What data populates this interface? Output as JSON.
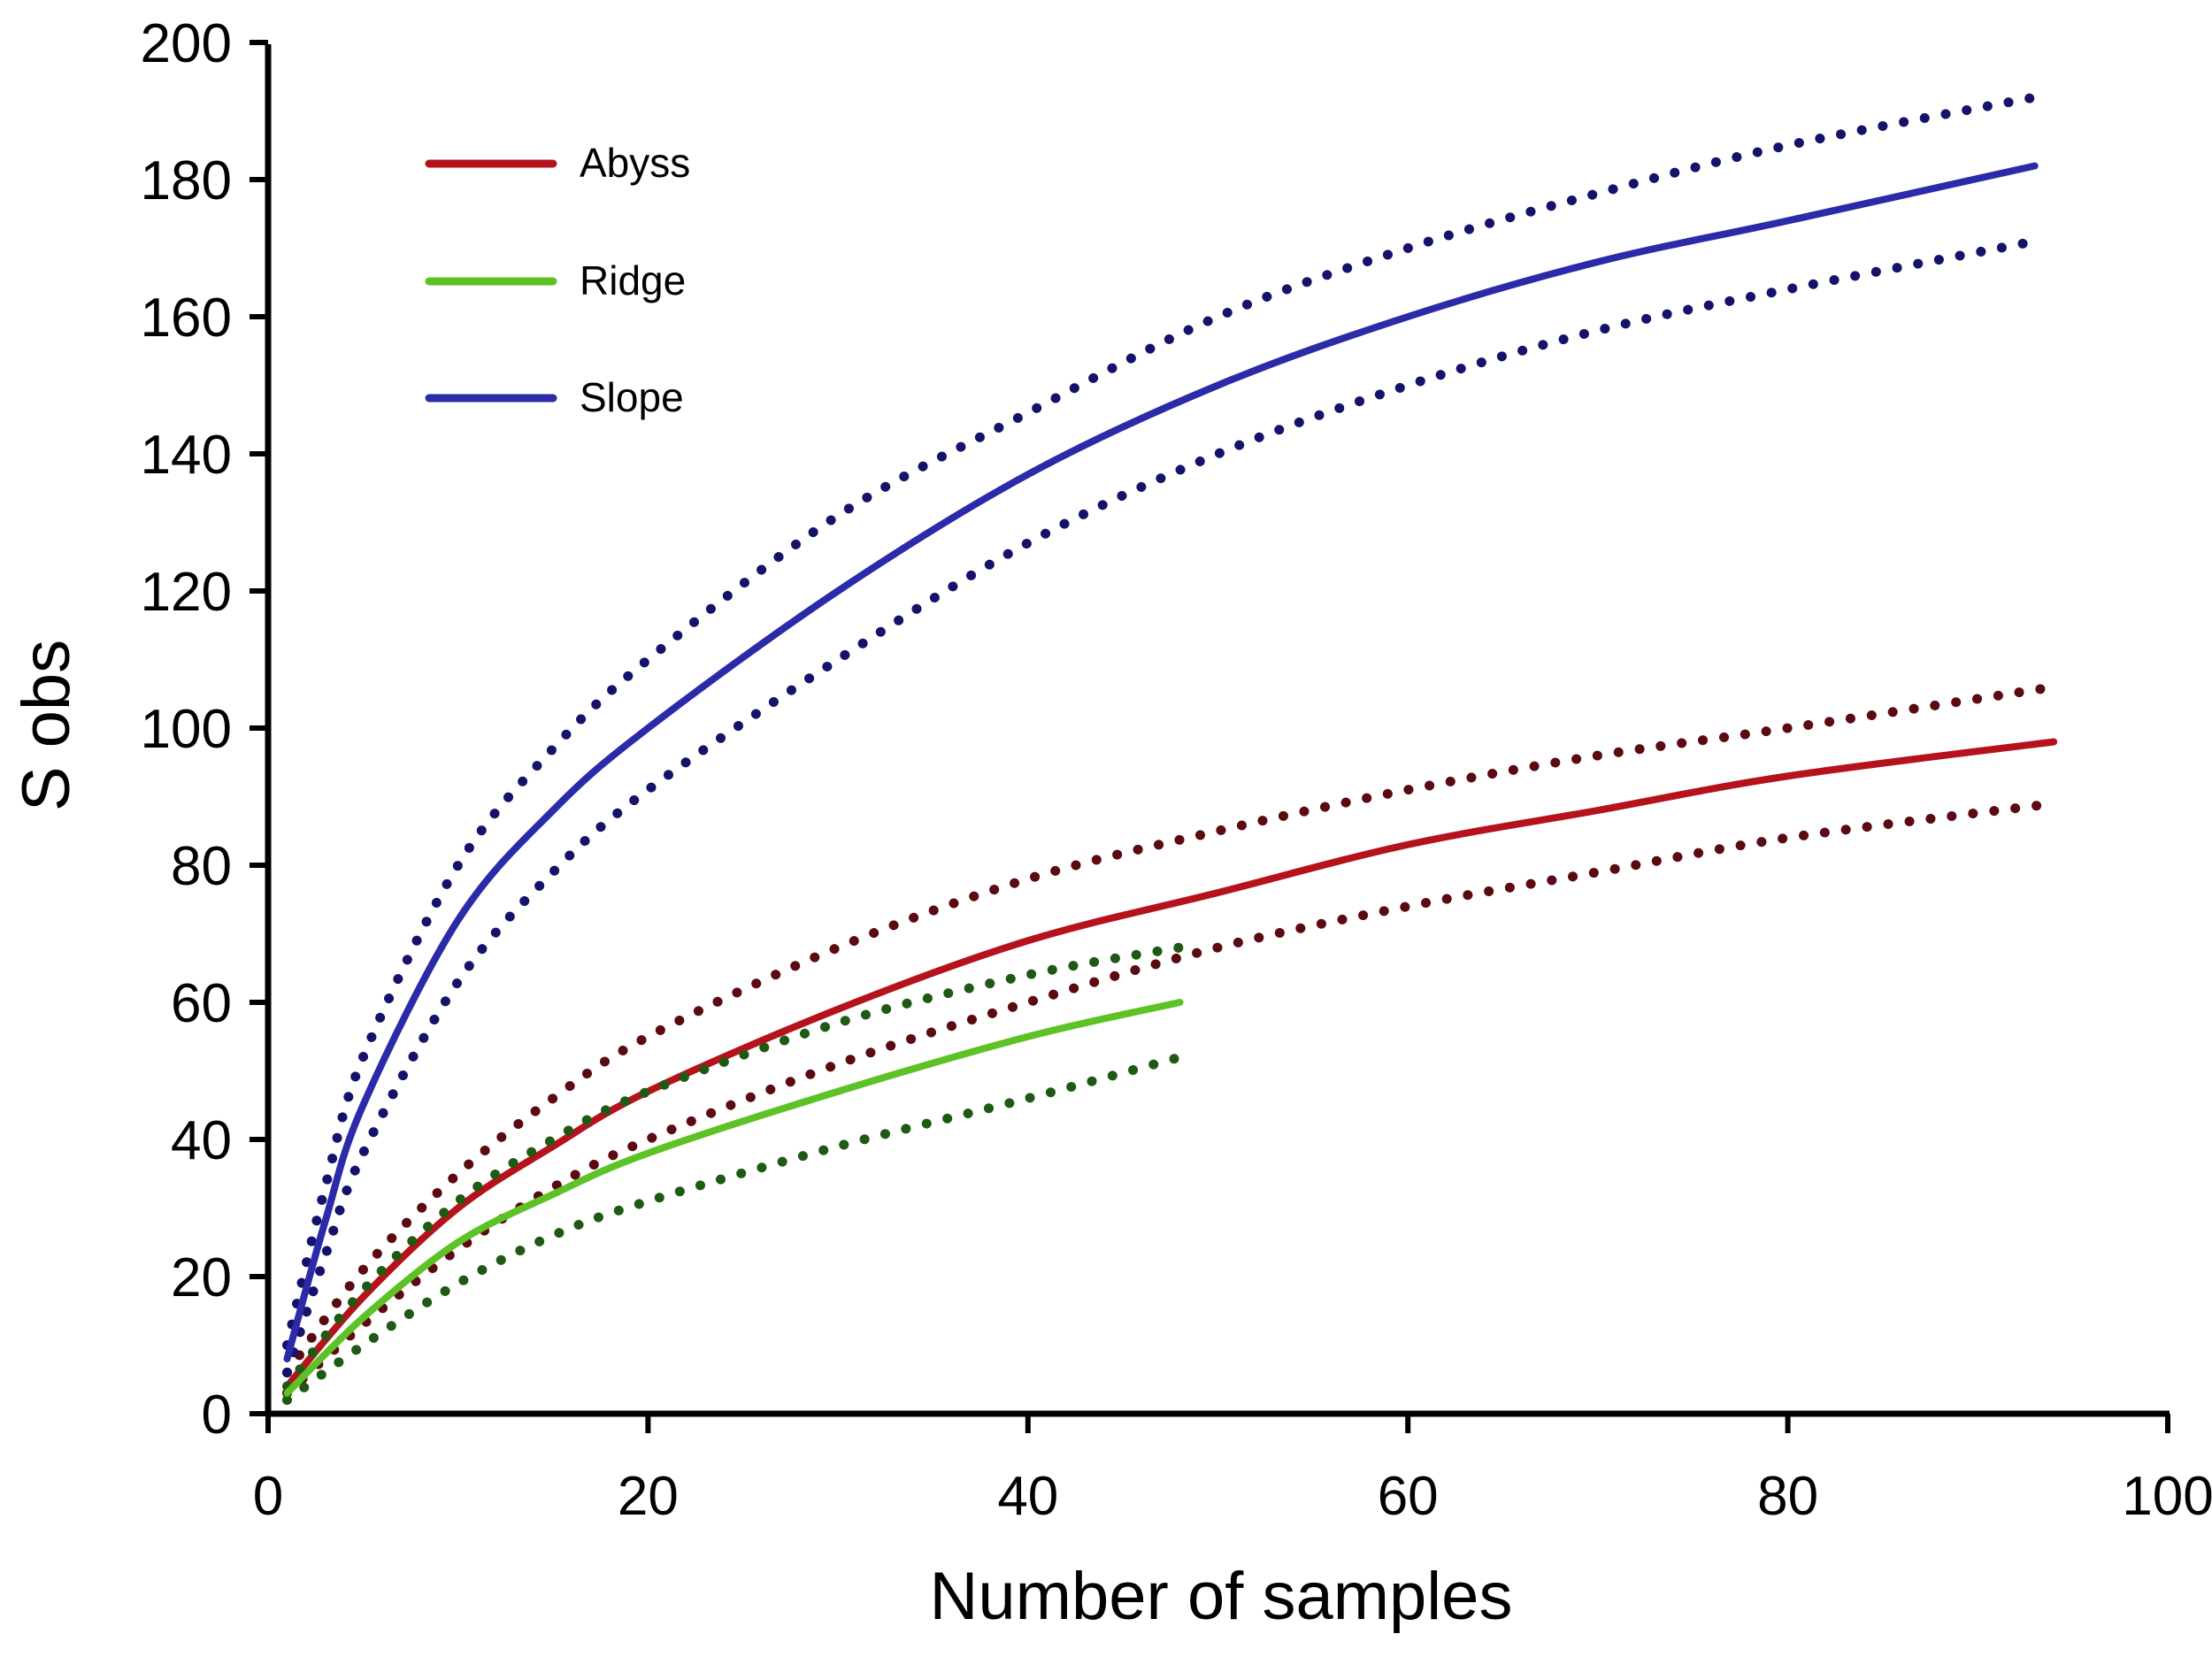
{
  "chart_data": {
    "type": "line",
    "title": "",
    "xlabel": "Number of samples",
    "ylabel": "S obs",
    "xlim": [
      0,
      100
    ],
    "ylim": [
      0,
      200
    ],
    "xticks": [
      0,
      20,
      40,
      60,
      80,
      100
    ],
    "yticks": [
      0,
      20,
      40,
      60,
      80,
      100,
      120,
      140,
      160,
      180,
      200
    ],
    "grid": false,
    "legend_position": "upper left",
    "series": [
      {
        "name": "Abyss",
        "color": "#b5121b",
        "style": "solid",
        "x": [
          1,
          5,
          10,
          15,
          20,
          30,
          40,
          50,
          60,
          70,
          80,
          94
        ],
        "values": [
          4,
          17,
          30,
          39,
          47,
          59,
          69,
          76,
          83,
          88,
          93,
          98
        ],
        "ci_upper": [
          6,
          21,
          35,
          46,
          55,
          68,
          78,
          85,
          91,
          96,
          100,
          106
        ],
        "ci_lower": [
          3,
          13,
          24,
          33,
          40,
          51,
          60,
          68,
          74,
          79,
          84,
          89
        ]
      },
      {
        "name": "Ridge",
        "color": "#5cc226",
        "style": "solid",
        "x": [
          1,
          5,
          10,
          15,
          20,
          30,
          40,
          48
        ],
        "values": [
          3,
          14,
          25,
          32,
          38,
          47,
          55,
          60
        ],
        "ci_upper": [
          4,
          18,
          31,
          40,
          47,
          57,
          64,
          68
        ],
        "ci_lower": [
          2,
          10,
          19,
          26,
          31,
          39,
          46,
          52
        ]
      },
      {
        "name": "Slope",
        "color": "#2b2aa8",
        "style": "solid",
        "x": [
          1,
          3,
          5,
          10,
          15,
          20,
          30,
          40,
          50,
          60,
          70,
          80,
          93
        ],
        "values": [
          8,
          28,
          45,
          72,
          88,
          100,
          120,
          137,
          150,
          160,
          168,
          174,
          182
        ],
        "ci_upper": [
          10,
          33,
          52,
          80,
          97,
          110,
          131,
          146,
          160,
          170,
          178,
          185,
          192
        ],
        "ci_lower": [
          6,
          23,
          38,
          63,
          79,
          91,
          110,
          127,
          140,
          150,
          158,
          164,
          171
        ]
      }
    ]
  },
  "legend": {
    "items": [
      {
        "label": "Abyss",
        "color": "#b5121b"
      },
      {
        "label": "Ridge",
        "color": "#5cc226"
      },
      {
        "label": "Slope",
        "color": "#2b2aa8"
      }
    ]
  },
  "axes": {
    "x_title": "Number of samples",
    "y_title": "S obs",
    "x_tick_labels": [
      "0",
      "20",
      "40",
      "60",
      "80",
      "100"
    ],
    "y_tick_labels": [
      "0",
      "20",
      "40",
      "60",
      "80",
      "100",
      "120",
      "140",
      "160",
      "180",
      "200"
    ]
  }
}
